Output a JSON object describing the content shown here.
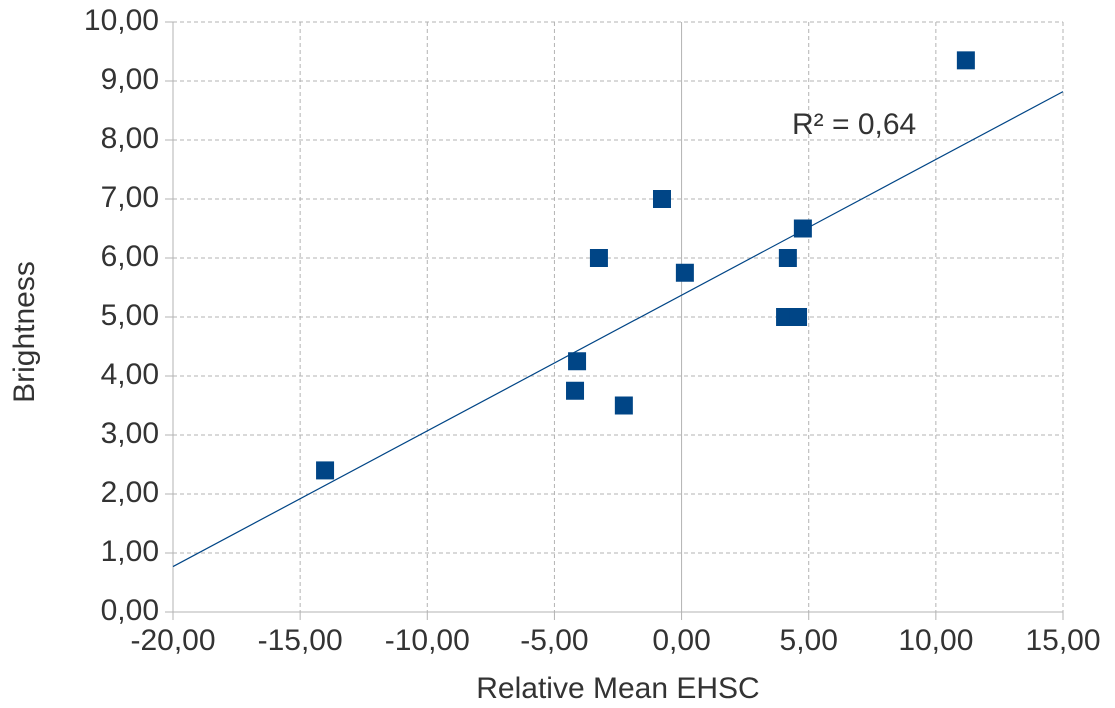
{
  "chart_data": {
    "type": "scatter",
    "x_label": "Relative Mean EHSC",
    "y_label": "Brightness",
    "annotation": "R² = 0,64",
    "series": [
      {
        "name": "Brightness",
        "color": "#004586",
        "x": [
          -14.02,
          -4.19,
          -4.11,
          -2.27,
          -3.25,
          -0.77,
          0.13,
          4.07,
          4.3,
          4.58,
          4.18,
          4.77,
          11.18
        ],
        "values": [
          2.4,
          3.75,
          4.25,
          3.5,
          6.0,
          7.0,
          5.75,
          5.0,
          5.0,
          5.0,
          6.0,
          6.5,
          9.35
        ]
      }
    ],
    "trendline": {
      "color": "#004586",
      "x": [
        -20,
        15
      ],
      "y": [
        0.77,
        8.82
      ]
    },
    "xlim": [
      -20,
      15
    ],
    "xticks": [
      {
        "value": -20,
        "label": "-20,00"
      },
      {
        "value": -15,
        "label": "-15,00"
      },
      {
        "value": -10,
        "label": "-10,00"
      },
      {
        "value": -5,
        "label": "-5,00"
      },
      {
        "value": 0,
        "label": "0,00"
      },
      {
        "value": 5,
        "label": "5,00"
      },
      {
        "value": 10,
        "label": "10,00"
      },
      {
        "value": 15,
        "label": "15,00"
      }
    ],
    "ylim": [
      0,
      10
    ],
    "yticks": [
      {
        "value": 0,
        "label": "0,00"
      },
      {
        "value": 1,
        "label": "1,00"
      },
      {
        "value": 2,
        "label": "2,00"
      },
      {
        "value": 3,
        "label": "3,00"
      },
      {
        "value": 4,
        "label": "4,00"
      },
      {
        "value": 5,
        "label": "5,00"
      },
      {
        "value": 6,
        "label": "6,00"
      },
      {
        "value": 7,
        "label": "7,00"
      },
      {
        "value": 8,
        "label": "8,00"
      },
      {
        "value": 9,
        "label": "9,00"
      },
      {
        "value": 10,
        "label": "10,00"
      }
    ],
    "grid": true
  }
}
